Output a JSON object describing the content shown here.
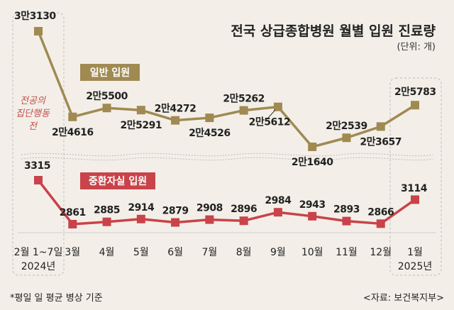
{
  "chart_data": {
    "type": "line",
    "title": "전국 상급종합병원 월별 입원 진료량",
    "unit": "(단위: 개)",
    "categories": [
      {
        "line1": "2월 1~7일",
        "line2": "2024년"
      },
      {
        "line1": "3월",
        "line2": ""
      },
      {
        "line1": "4월",
        "line2": ""
      },
      {
        "line1": "5월",
        "line2": ""
      },
      {
        "line1": "6월",
        "line2": ""
      },
      {
        "line1": "7월",
        "line2": ""
      },
      {
        "line1": "8월",
        "line2": ""
      },
      {
        "line1": "9월",
        "line2": ""
      },
      {
        "line1": "10월",
        "line2": ""
      },
      {
        "line1": "11월",
        "line2": ""
      },
      {
        "line1": "12월",
        "line2": ""
      },
      {
        "line1": "1월",
        "line2": "2025년"
      }
    ],
    "series": [
      {
        "name": "일반 입원",
        "color": "#a08a52",
        "values": [
          33130,
          24616,
          25500,
          25291,
          24272,
          24526,
          25262,
          25612,
          21640,
          22539,
          23657,
          25783
        ],
        "labels": [
          "3만3130",
          "2만4616",
          "2만5500",
          "2만5291",
          "2만4272",
          "2만4526",
          "2만5262",
          "2만5612",
          "2만1640",
          "2만2539",
          "2만3657",
          "2만5783"
        ]
      },
      {
        "name": "중환자실 입원",
        "color": "#c9434a",
        "values": [
          3315,
          2861,
          2885,
          2914,
          2879,
          2908,
          2896,
          2984,
          2943,
          2893,
          2866,
          3114
        ],
        "labels": [
          "3315",
          "2861",
          "2885",
          "2914",
          "2879",
          "2908",
          "2896",
          "2984",
          "2943",
          "2893",
          "2866",
          "3114"
        ]
      }
    ],
    "annotation": [
      "전공의",
      "집단행동",
      "전"
    ],
    "footnote": "*평일 일 평균 병상 기준",
    "source": "<자료: 보건복지부>"
  }
}
